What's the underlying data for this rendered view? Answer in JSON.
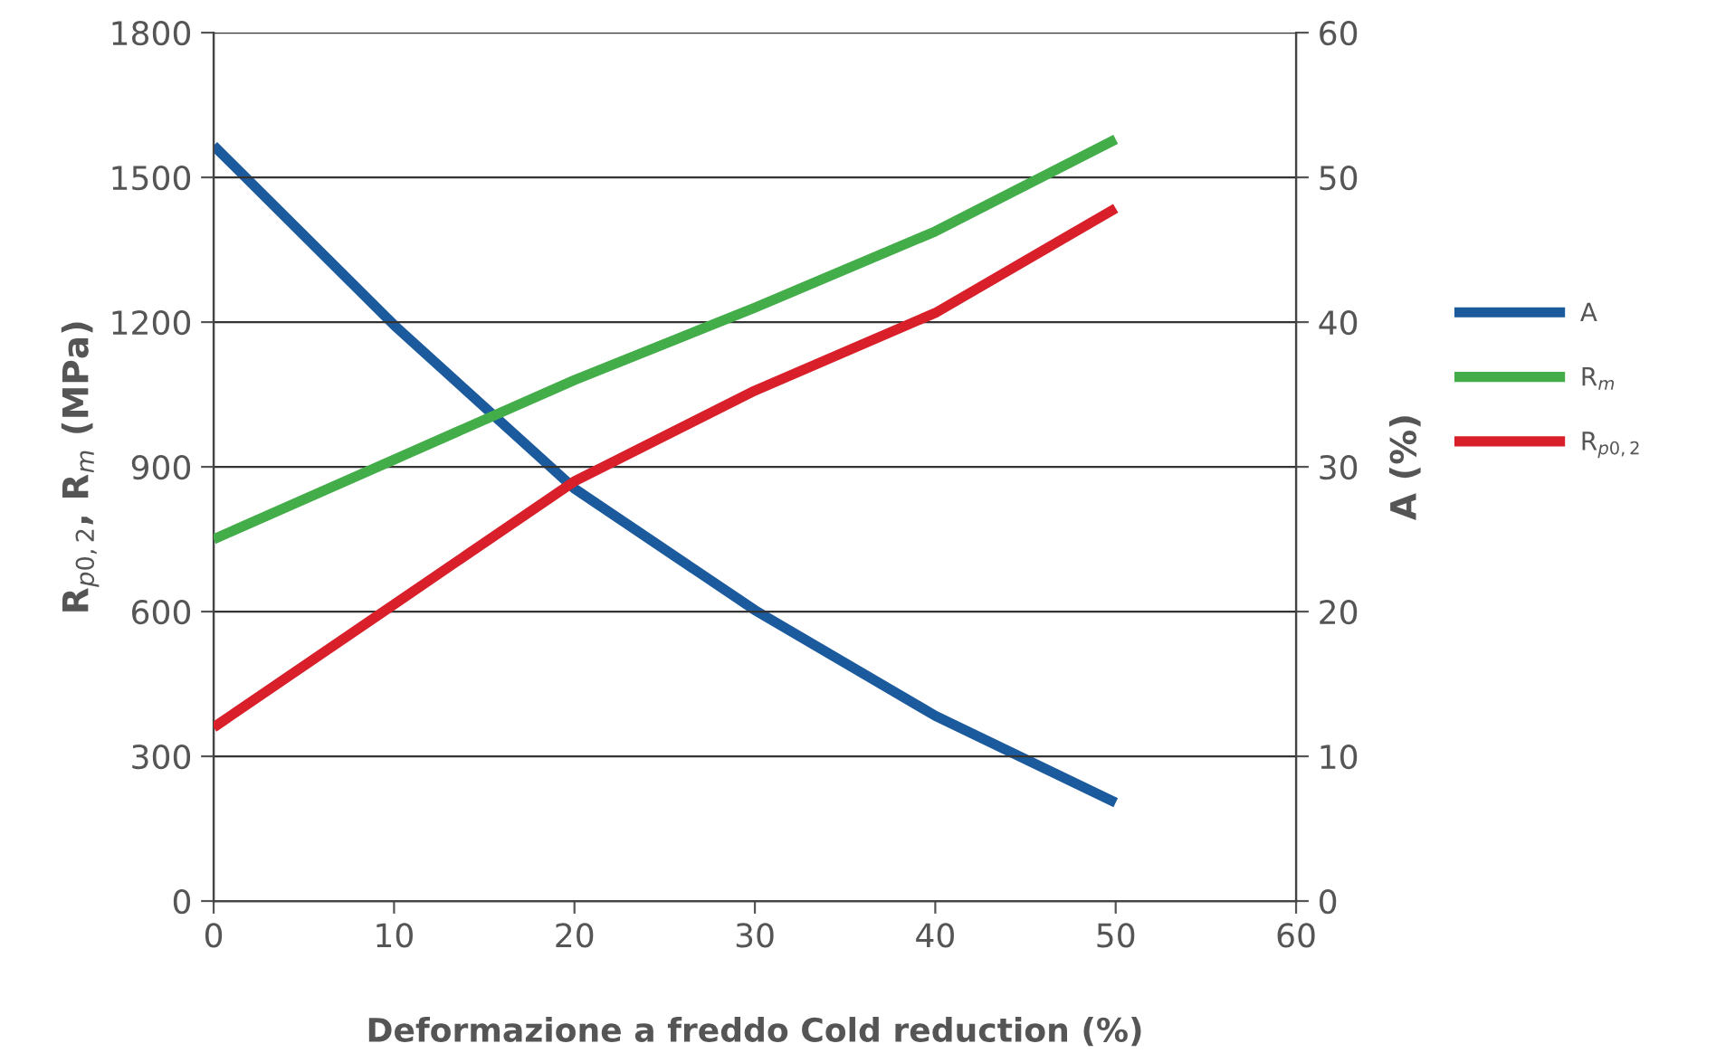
{
  "chart_data": {
    "type": "line",
    "xlabel": "Deformazione a freddo Cold reduction (%)",
    "ylabel": "R$_{p0,2}$, R$_{m}$ (MPa)",
    "y2label": "A (%)",
    "x": [
      0,
      10,
      20,
      30,
      40,
      50
    ],
    "series": [
      {
        "name": "A",
        "color": "#1b5a9c",
        "axis": "y2",
        "values": [
          52.2,
          39.8,
          28.5,
          20.1,
          12.8,
          6.8
        ]
      },
      {
        "name": "R$_{m}$",
        "color": "#43ad49",
        "values": [
          750,
          915,
          1080,
          1230,
          1388,
          1579
        ]
      },
      {
        "name": "R$_{p0,2}$",
        "color": "#d9202a",
        "values": [
          360,
          615,
          870,
          1058,
          1219,
          1436
        ]
      }
    ],
    "xlim": [
      0,
      60
    ],
    "xticks": [
      0,
      10,
      20,
      30,
      40,
      50,
      60
    ],
    "ylim": [
      0,
      1800
    ],
    "yticks": [
      0,
      300,
      600,
      900,
      1200,
      1500,
      1800
    ],
    "y2lim": [
      0,
      60
    ],
    "y2ticks": [
      0,
      10,
      20,
      30,
      40,
      50,
      60
    ],
    "grid": "y",
    "legend": "right",
    "marker": "none",
    "line_style": "solid"
  }
}
